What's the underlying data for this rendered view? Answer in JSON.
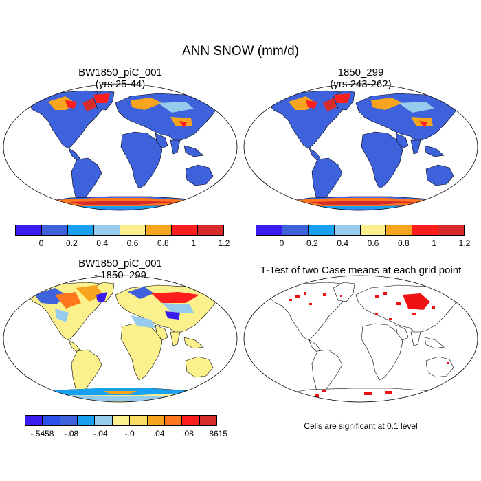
{
  "figure": {
    "title": "ANN SNOW (mm/d)"
  },
  "panels": [
    {
      "title_line1": "BW1850_piC_001",
      "title_line2": "(yrs 25-44)"
    },
    {
      "title_line1": "1850_299",
      "title_line2": "(yrs 243-262)"
    },
    {
      "title_line1": "BW1850_piC_001",
      "title_line2": "- 1850_299"
    },
    {
      "title_line1": "T-Test of two Case means at each grid point",
      "title_line2": ""
    }
  ],
  "colorbars": {
    "absolute": {
      "colors": [
        "#3a1bf0",
        "#3e62db",
        "#1aa0f0",
        "#96cbee",
        "#faf08c",
        "#f7a51e",
        "#ff1e1e",
        "#d72a2a"
      ],
      "labels": [
        "0",
        "0.2",
        "0.4",
        "0.6",
        "0.8",
        "1",
        "1.2"
      ]
    },
    "difference": {
      "colors": [
        "#3a1bf0",
        "#2d50e8",
        "#3e62db",
        "#1aa0f0",
        "#96cbee",
        "#faf08c",
        "#fadc64",
        "#f7a51e",
        "#ff781e",
        "#ff1e1e",
        "#d72a2a"
      ],
      "labels": [
        "-.5458",
        "-.08",
        "-.04",
        "-.0",
        ".04",
        ".08",
        ".8615"
      ]
    }
  },
  "significance_note": "Cells are significant at 0.1 level",
  "colors": {
    "ocean": "#ffffff",
    "land_fill_absolute": "#3e62db",
    "land_fill_difference": "#faf08c",
    "significant": "#ee1111",
    "outline": "#000000"
  }
}
